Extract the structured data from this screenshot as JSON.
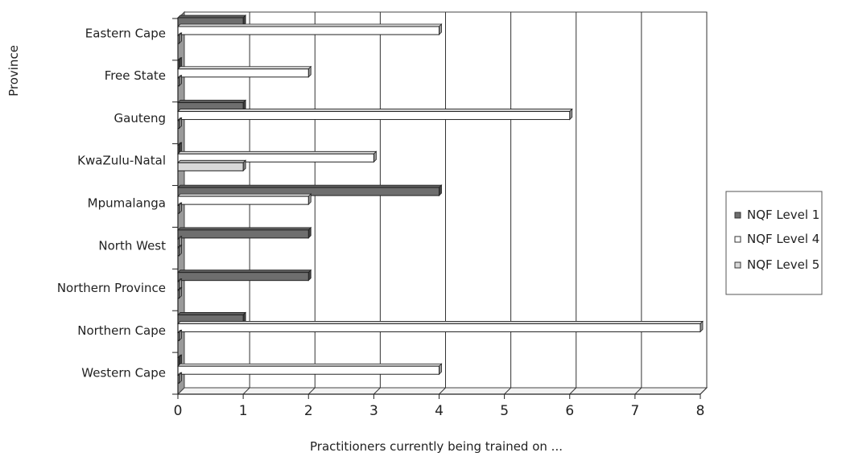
{
  "chart_data": {
    "type": "bar",
    "orientation": "horizontal",
    "style": "3d",
    "categories": [
      "Eastern Cape",
      "Free State",
      "Gauteng",
      "KwaZulu-Natal",
      "Mpumalanga",
      "North West",
      "Northern Province",
      "Northern Cape",
      "Western Cape"
    ],
    "series": [
      {
        "name": "NQF Level 1",
        "color": "#6e6e6e",
        "values": [
          1,
          0,
          1,
          0,
          4,
          2,
          2,
          1,
          0
        ]
      },
      {
        "name": "NQF Level 4",
        "color": "#ffffff",
        "values": [
          4,
          2,
          6,
          3,
          2,
          0,
          0,
          8,
          4
        ]
      },
      {
        "name": "NQF Level 5",
        "color": "#d8d8d8",
        "values": [
          0,
          0,
          0,
          1,
          0,
          0,
          0,
          0,
          0
        ]
      }
    ],
    "xlabel": "Practitioners currently being trained on ...",
    "ylabel": "Province",
    "xlim": [
      0,
      8
    ],
    "xticks": [
      "0",
      "1",
      "2",
      "3",
      "4",
      "5",
      "6",
      "7",
      "8"
    ],
    "grid": true,
    "legend_position": "right"
  }
}
